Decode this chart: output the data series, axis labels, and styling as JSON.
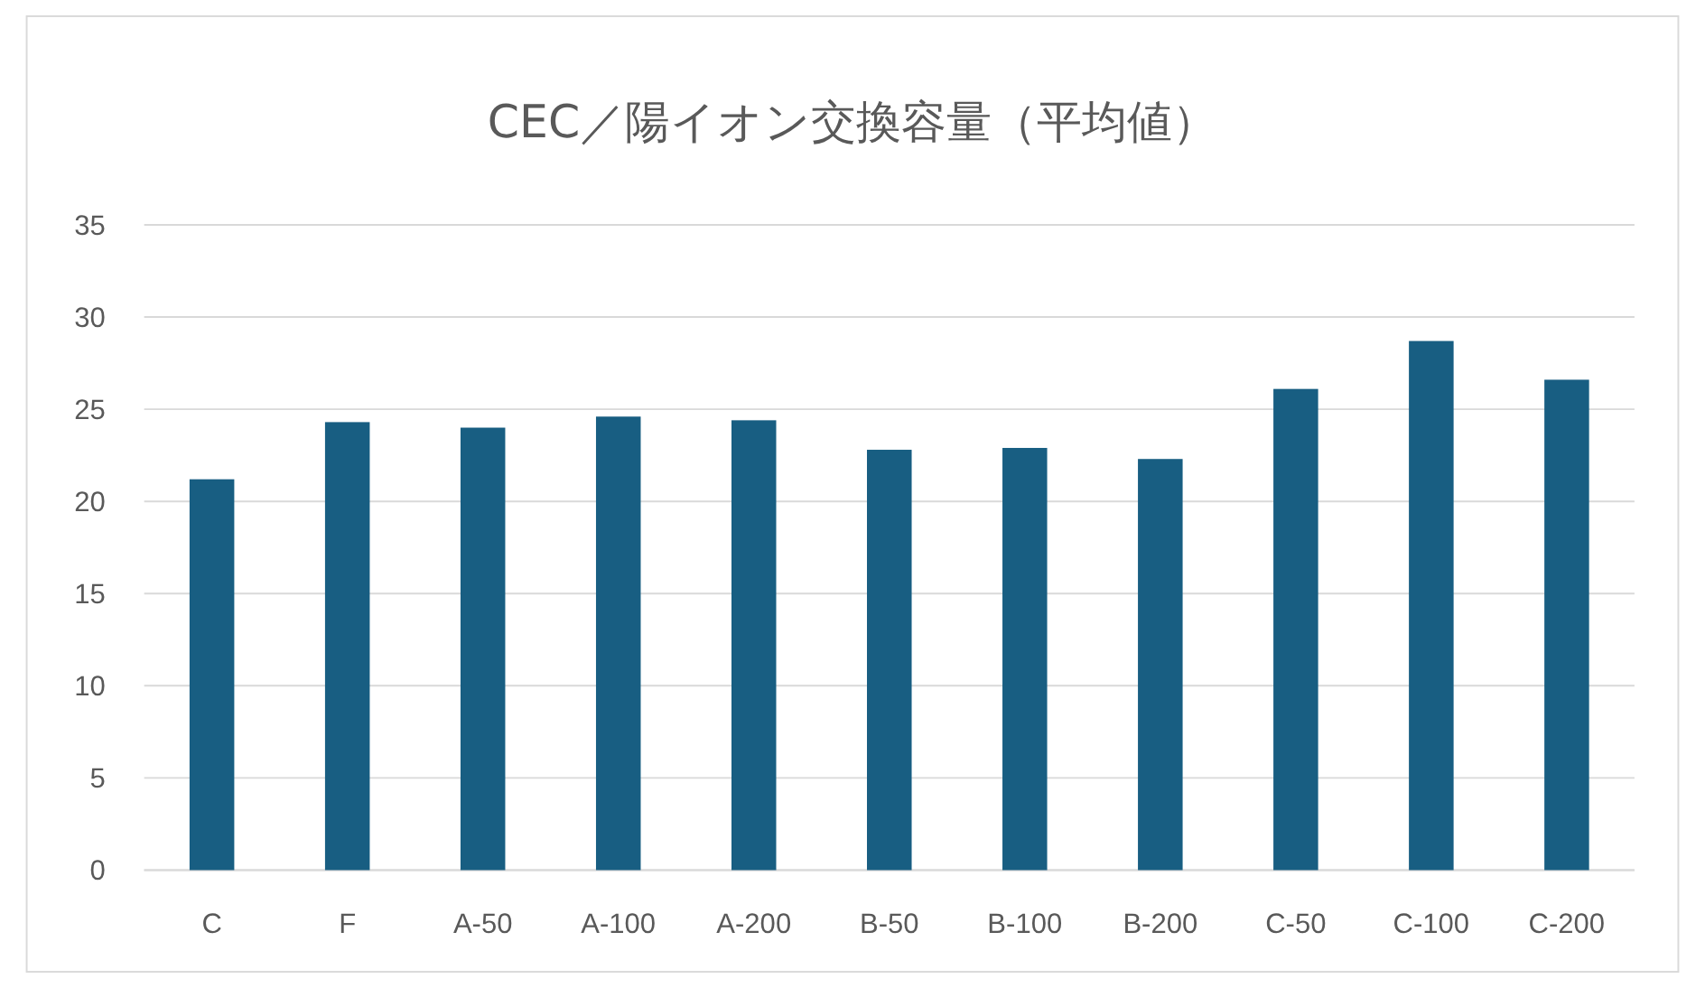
{
  "chart_data": {
    "type": "bar",
    "title": "CEC／陽イオン交換容量（平均値）",
    "categories": [
      "C",
      "F",
      "A-50",
      "A-100",
      "A-200",
      "B-50",
      "B-100",
      "B-200",
      "C-50",
      "C-100",
      "C-200"
    ],
    "values": [
      21.2,
      24.3,
      24.0,
      24.6,
      24.4,
      22.8,
      22.9,
      22.3,
      26.1,
      28.7,
      26.6
    ],
    "color": "#185e82",
    "ylim": [
      0,
      35
    ],
    "yticks": [
      0,
      5,
      10,
      15,
      20,
      25,
      30,
      35
    ],
    "grid": "y"
  }
}
